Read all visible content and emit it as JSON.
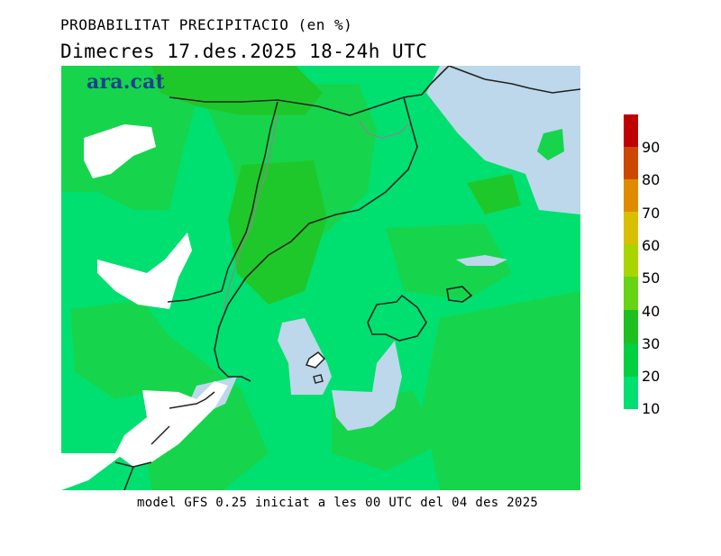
{
  "header": {
    "title": "PROBABILITAT PRECIPITACIO (en %)",
    "subtitle": "Dimecres  17.des.2025 18-24h UTC"
  },
  "map": {
    "logo": "ara.cat"
  },
  "footer": {
    "text": "model GFS 0.25 iniciat a les 00 UTC del 04 des 2025"
  },
  "legend": {
    "ticks": [
      "10",
      "20",
      "30",
      "40",
      "50",
      "60",
      "70",
      "80",
      "90"
    ],
    "colors": [
      "#00e070",
      "#00cf40",
      "#1fbf1f",
      "#66d414",
      "#a8d500",
      "#d8c000",
      "#e08a00",
      "#cc4800",
      "#c00000"
    ]
  },
  "colors": {
    "land_base": "#00e070",
    "mid_green": "#16d54c",
    "dark_green": "#1fc82a",
    "low_prob": "#bcd8ea",
    "no_data": "#ffffff"
  }
}
